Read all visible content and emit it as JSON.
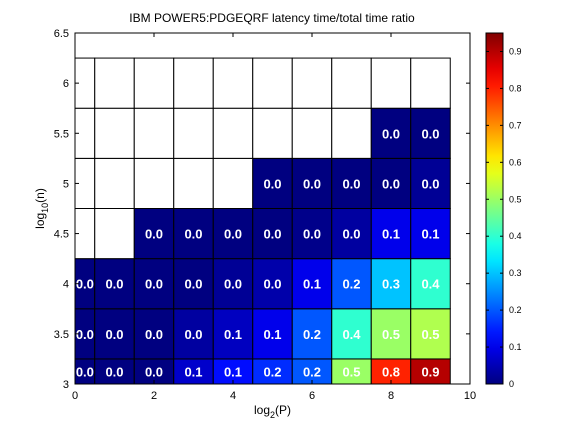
{
  "chart_data": {
    "type": "heatmap",
    "title": "IBM POWER5:PDGEQRF latency time/total time ratio",
    "xlabel": {
      "base": "log",
      "sub": "2",
      "rest": "(P)"
    },
    "ylabel": {
      "base": "log",
      "sub": "10",
      "rest": "(n)"
    },
    "xlim": [
      0,
      10
    ],
    "ylim": [
      3,
      6.5
    ],
    "x_ticks": [
      "0",
      "2",
      "4",
      "6",
      "8",
      "10"
    ],
    "y_ticks": [
      "3",
      "3.5",
      "4",
      "4.5",
      "5",
      "5.5",
      "6",
      "6.5"
    ],
    "colorbar": {
      "range": [
        0,
        0.95
      ],
      "ticks": [
        "0",
        "0.1",
        "0.2",
        "0.3",
        "0.4",
        "0.5",
        "0.6",
        "0.7",
        "0.8",
        "0.9"
      ],
      "colormap": "jet"
    },
    "x_centers": [
      0,
      1,
      2,
      3,
      4,
      5,
      6,
      7,
      8,
      9
    ],
    "y_rows": [
      {
        "y": 3.0,
        "values": [
          0.0,
          0.0,
          0.0,
          0.07,
          0.13,
          0.16,
          0.2,
          0.5,
          0.8,
          0.9
        ]
      },
      {
        "y": 3.5,
        "values": [
          0.0,
          0.0,
          0.0,
          0.03,
          0.06,
          0.1,
          0.2,
          0.4,
          0.5,
          0.52
        ]
      },
      {
        "y": 4.0,
        "values": [
          0.0,
          0.0,
          0.0,
          0.0,
          0.02,
          0.04,
          0.1,
          0.2,
          0.3,
          0.4
        ]
      },
      {
        "y": 4.5,
        "values": [
          null,
          null,
          0.0,
          0.0,
          0.0,
          0.0,
          0.01,
          0.03,
          0.1,
          0.1
        ]
      },
      {
        "y": 5.0,
        "values": [
          null,
          null,
          null,
          null,
          null,
          0.0,
          0.0,
          0.0,
          0.0,
          0.02
        ]
      },
      {
        "y": 5.5,
        "values": [
          null,
          null,
          null,
          null,
          null,
          null,
          null,
          null,
          0.0,
          0.0
        ]
      },
      {
        "y": 6.0,
        "values": [
          null,
          null,
          null,
          null,
          null,
          null,
          null,
          null,
          null,
          null
        ]
      }
    ],
    "cell_labels": [
      [
        "0.0",
        "0.0",
        "0.0",
        "0.1",
        "0.1",
        "0.2",
        "0.2",
        "0.5",
        "0.8",
        "0.9"
      ],
      [
        "0.0",
        "0.0",
        "0.0",
        "0.0",
        "0.1",
        "0.1",
        "0.2",
        "0.4",
        "0.5",
        "0.5"
      ],
      [
        "0.0",
        "0.0",
        "0.0",
        "0.0",
        "0.0",
        "0.0",
        "0.1",
        "0.2",
        "0.3",
        "0.4"
      ],
      [
        null,
        null,
        "0.0",
        "0.0",
        "0.0",
        "0.0",
        "0.0",
        "0.0",
        "0.1",
        "0.1"
      ],
      [
        null,
        null,
        null,
        null,
        null,
        "0.0",
        "0.0",
        "0.0",
        "0.0",
        "0.0"
      ],
      [
        null,
        null,
        null,
        null,
        null,
        null,
        null,
        null,
        "0.0",
        "0.0"
      ],
      [
        null,
        null,
        null,
        null,
        null,
        null,
        null,
        null,
        null,
        null
      ]
    ],
    "grid": false
  }
}
